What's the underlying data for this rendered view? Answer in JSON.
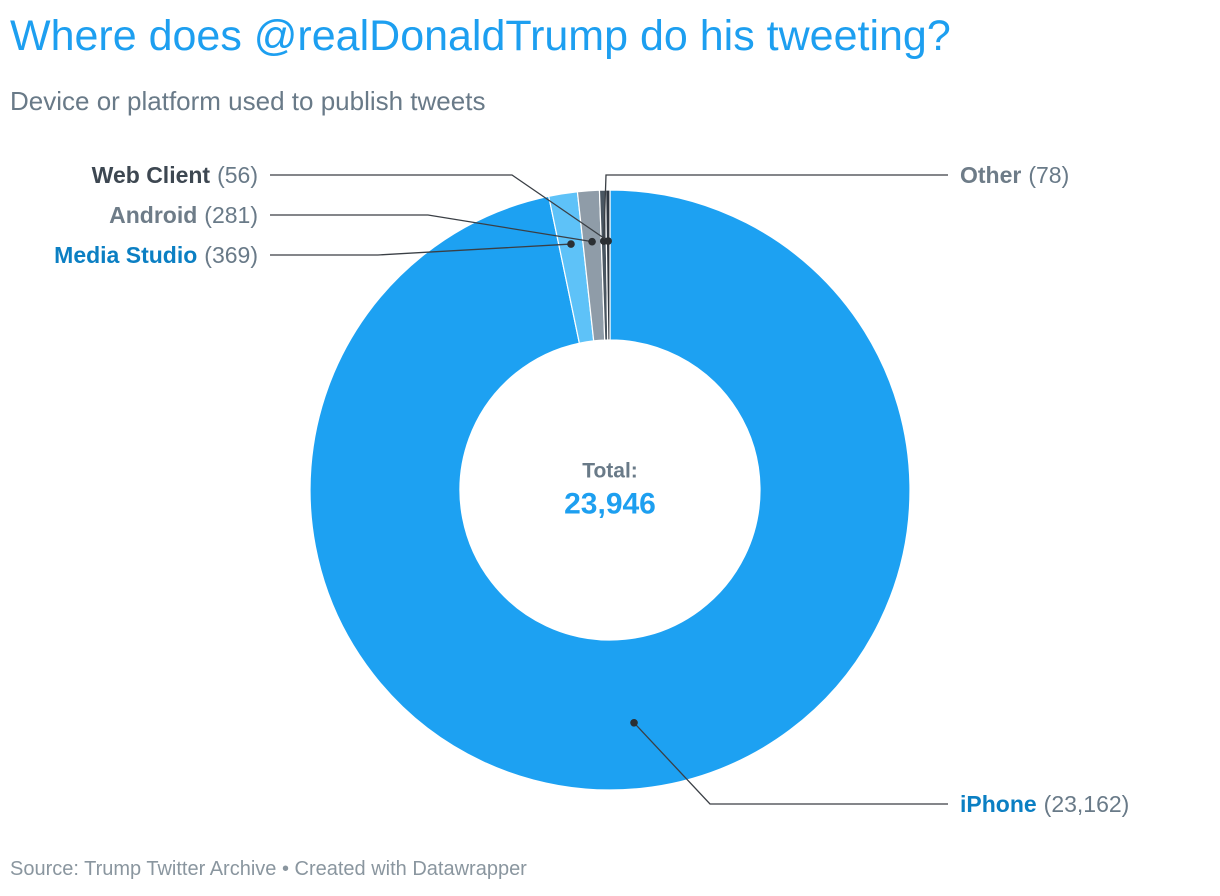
{
  "header": {
    "title": "Where does @realDonaldTrump do his tweeting?",
    "subtitle": "Device or platform used to publish tweets"
  },
  "footer": {
    "source": "Source: Trump Twitter Archive • Created with Datawrapper"
  },
  "chart_data": {
    "type": "pie",
    "donut": true,
    "title": "Where does @realDonaldTrump do his tweeting?",
    "subtitle": "Device or platform used to publish tweets",
    "center_label": "Total:",
    "total_label": "23,946",
    "total": 23946,
    "slices": [
      {
        "name": "iPhone",
        "value": 23162,
        "value_label": "(23,162)",
        "color": "#1da1f2",
        "label_color": "#0b7fc3"
      },
      {
        "name": "Media Studio",
        "value": 369,
        "value_label": "(369)",
        "color": "#5ec2f8",
        "label_color": "#0b7fc3"
      },
      {
        "name": "Android",
        "value": 281,
        "value_label": "(281)",
        "color": "#8f9ca8",
        "label_color": "#6e7c88"
      },
      {
        "name": "Other",
        "value": 78,
        "value_label": "(78)",
        "color": "#4a5661",
        "label_color": "#6e7c88"
      },
      {
        "name": "Web Client",
        "value": 56,
        "value_label": "(56)",
        "color": "#2e3640",
        "label_color": "#3d4751"
      }
    ],
    "number_color": "#697a88",
    "total_color": "#1d9ff0"
  }
}
